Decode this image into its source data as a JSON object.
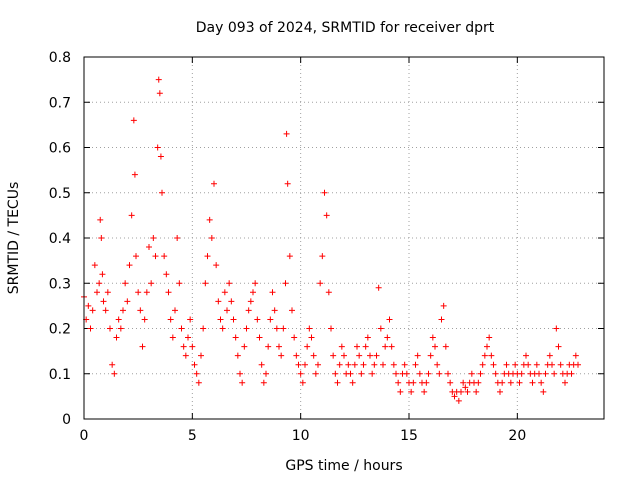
{
  "chart_data": {
    "type": "scatter",
    "title": "Day 093 of 2024, SRMTID for receiver dprt",
    "xlabel": "GPS time / hours",
    "ylabel": "SRMTID / TECUs",
    "xlim": [
      0,
      24
    ],
    "ylim": [
      0,
      0.8
    ],
    "grid": true,
    "marker": "+",
    "color": "#ff0000",
    "x_ticks": [
      0,
      5,
      10,
      15,
      20
    ],
    "x_tick_labels": [
      "0",
      "5",
      "10",
      "15",
      "20"
    ],
    "y_ticks": [
      0,
      0.1,
      0.2,
      0.3,
      0.4,
      0.5,
      0.6,
      0.7,
      0.8
    ],
    "y_tick_labels": [
      "0",
      "0.1",
      "0.2",
      "0.3",
      "0.4",
      "0.5",
      "0.6",
      "0.7",
      "0.8"
    ],
    "series": [
      {
        "name": "dprt",
        "x": [
          0.0,
          0.1,
          0.2,
          0.3,
          0.4,
          0.5,
          0.6,
          0.7,
          0.75,
          0.8,
          0.85,
          0.9,
          1.0,
          1.1,
          1.2,
          1.3,
          1.4,
          1.5,
          1.6,
          1.7,
          1.8,
          1.9,
          2.0,
          2.1,
          2.2,
          2.3,
          2.35,
          2.4,
          2.5,
          2.6,
          2.7,
          2.8,
          2.9,
          3.0,
          3.1,
          3.2,
          3.3,
          3.4,
          3.45,
          3.5,
          3.55,
          3.6,
          3.7,
          3.8,
          3.9,
          4.0,
          4.1,
          4.2,
          4.3,
          4.4,
          4.5,
          4.6,
          4.7,
          4.8,
          4.9,
          5.0,
          5.1,
          5.2,
          5.3,
          5.4,
          5.5,
          5.6,
          5.7,
          5.8,
          5.9,
          6.0,
          6.1,
          6.2,
          6.3,
          6.4,
          6.5,
          6.6,
          6.7,
          6.8,
          6.9,
          7.0,
          7.1,
          7.2,
          7.3,
          7.4,
          7.5,
          7.6,
          7.7,
          7.8,
          7.9,
          8.0,
          8.1,
          8.2,
          8.3,
          8.4,
          8.5,
          8.6,
          8.7,
          8.8,
          8.9,
          9.0,
          9.1,
          9.2,
          9.3,
          9.35,
          9.4,
          9.5,
          9.6,
          9.7,
          9.8,
          9.9,
          10.0,
          10.1,
          10.2,
          10.3,
          10.4,
          10.5,
          10.6,
          10.7,
          10.8,
          10.9,
          11.0,
          11.1,
          11.2,
          11.3,
          11.4,
          11.5,
          11.6,
          11.7,
          11.8,
          11.9,
          12.0,
          12.1,
          12.2,
          12.3,
          12.4,
          12.5,
          12.6,
          12.7,
          12.8,
          12.9,
          13.0,
          13.1,
          13.2,
          13.3,
          13.4,
          13.5,
          13.6,
          13.7,
          13.8,
          13.9,
          14.0,
          14.1,
          14.2,
          14.3,
          14.4,
          14.5,
          14.6,
          14.7,
          14.8,
          14.9,
          15.0,
          15.1,
          15.2,
          15.3,
          15.4,
          15.5,
          15.6,
          15.7,
          15.8,
          15.9,
          16.0,
          16.1,
          16.2,
          16.3,
          16.4,
          16.5,
          16.6,
          16.7,
          16.8,
          16.9,
          17.0,
          17.1,
          17.2,
          17.3,
          17.4,
          17.5,
          17.6,
          17.7,
          17.8,
          17.9,
          18.0,
          18.1,
          18.2,
          18.3,
          18.4,
          18.5,
          18.6,
          18.7,
          18.8,
          18.9,
          19.0,
          19.1,
          19.2,
          19.3,
          19.4,
          19.5,
          19.6,
          19.7,
          19.8,
          19.9,
          20.0,
          20.1,
          20.2,
          20.3,
          20.4,
          20.5,
          20.6,
          20.7,
          20.8,
          20.9,
          21.0,
          21.1,
          21.2,
          21.3,
          21.4,
          21.5,
          21.6,
          21.7,
          21.8,
          21.9,
          22.0,
          22.1,
          22.2,
          22.3,
          22.4,
          22.5,
          22.6,
          22.7,
          22.8
        ],
        "y": [
          0.27,
          0.22,
          0.25,
          0.2,
          0.24,
          0.34,
          0.28,
          0.3,
          0.44,
          0.4,
          0.32,
          0.26,
          0.24,
          0.28,
          0.2,
          0.12,
          0.1,
          0.18,
          0.22,
          0.2,
          0.24,
          0.3,
          0.26,
          0.34,
          0.45,
          0.66,
          0.54,
          0.36,
          0.28,
          0.24,
          0.16,
          0.22,
          0.28,
          0.38,
          0.3,
          0.4,
          0.36,
          0.6,
          0.75,
          0.72,
          0.58,
          0.5,
          0.36,
          0.32,
          0.28,
          0.22,
          0.18,
          0.24,
          0.4,
          0.3,
          0.2,
          0.16,
          0.14,
          0.18,
          0.22,
          0.16,
          0.12,
          0.1,
          0.08,
          0.14,
          0.2,
          0.3,
          0.36,
          0.44,
          0.4,
          0.52,
          0.34,
          0.26,
          0.22,
          0.2,
          0.28,
          0.24,
          0.3,
          0.26,
          0.22,
          0.18,
          0.14,
          0.1,
          0.08,
          0.16,
          0.2,
          0.24,
          0.26,
          0.28,
          0.3,
          0.22,
          0.18,
          0.12,
          0.08,
          0.1,
          0.16,
          0.22,
          0.28,
          0.24,
          0.2,
          0.16,
          0.14,
          0.2,
          0.3,
          0.63,
          0.52,
          0.36,
          0.24,
          0.18,
          0.14,
          0.12,
          0.1,
          0.08,
          0.12,
          0.16,
          0.2,
          0.18,
          0.14,
          0.1,
          0.12,
          0.3,
          0.36,
          0.5,
          0.45,
          0.28,
          0.2,
          0.14,
          0.1,
          0.08,
          0.12,
          0.16,
          0.14,
          0.1,
          0.12,
          0.1,
          0.08,
          0.12,
          0.16,
          0.14,
          0.1,
          0.12,
          0.16,
          0.18,
          0.14,
          0.1,
          0.12,
          0.14,
          0.29,
          0.2,
          0.12,
          0.16,
          0.18,
          0.22,
          0.16,
          0.12,
          0.1,
          0.08,
          0.06,
          0.1,
          0.12,
          0.1,
          0.08,
          0.06,
          0.08,
          0.12,
          0.14,
          0.1,
          0.08,
          0.06,
          0.08,
          0.1,
          0.14,
          0.18,
          0.16,
          0.12,
          0.1,
          0.22,
          0.25,
          0.16,
          0.1,
          0.08,
          0.06,
          0.05,
          0.06,
          0.04,
          0.06,
          0.08,
          0.07,
          0.06,
          0.08,
          0.1,
          0.08,
          0.06,
          0.08,
          0.1,
          0.12,
          0.14,
          0.16,
          0.18,
          0.14,
          0.12,
          0.1,
          0.08,
          0.06,
          0.08,
          0.1,
          0.12,
          0.1,
          0.08,
          0.1,
          0.12,
          0.1,
          0.08,
          0.1,
          0.12,
          0.14,
          0.12,
          0.1,
          0.08,
          0.1,
          0.12,
          0.1,
          0.08,
          0.06,
          0.1,
          0.12,
          0.14,
          0.12,
          0.1,
          0.2,
          0.16,
          0.12,
          0.1,
          0.08,
          0.1,
          0.12,
          0.1,
          0.12,
          0.14,
          0.12
        ]
      }
    ]
  }
}
